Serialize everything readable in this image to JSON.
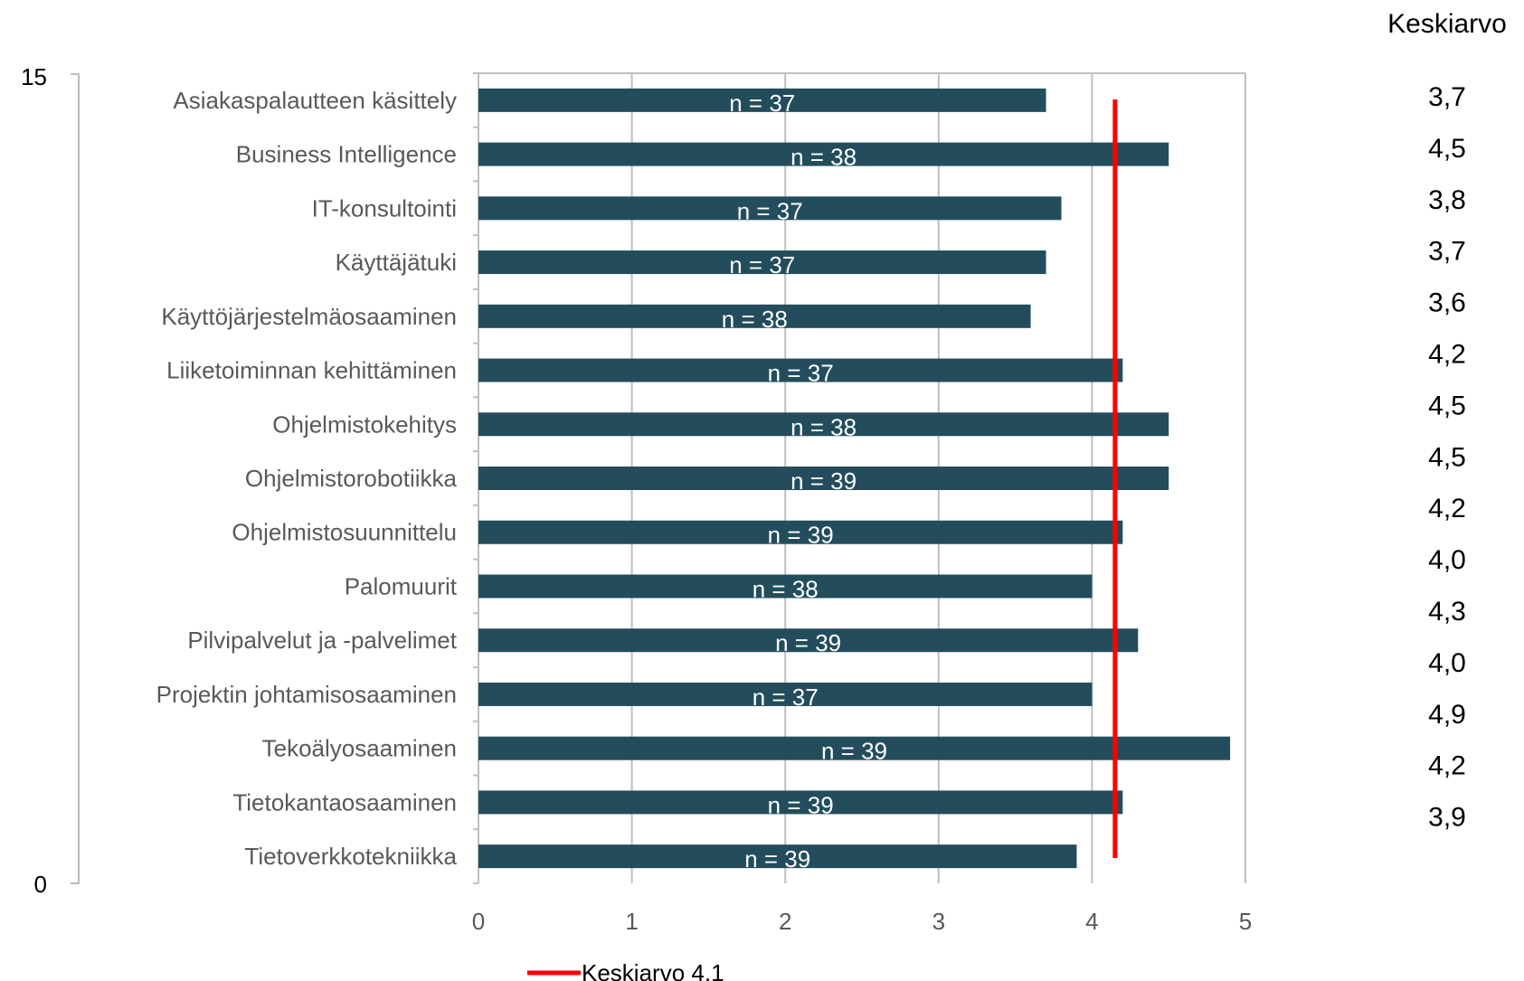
{
  "chart_data": {
    "type": "bar",
    "orientation": "horizontal",
    "categories": [
      "Asiakaspalautteen käsittely",
      "Business Intelligence",
      "IT-konsultointi",
      "Käyttäjätuki",
      "Käyttöjärjestelmäosaaminen",
      "Liiketoiminnan kehittäminen",
      "Ohjelmistokehitys",
      "Ohjelmistorobotiikka",
      "Ohjelmistosuunnittelu",
      "Palomuurit",
      "Pilvipalvelut ja -palvelimet",
      "Projektin johtamisosaaminen",
      "Tekoälyosaaminen",
      "Tietokantaosaaminen",
      "Tietoverkkotekniikka"
    ],
    "values": [
      3.7,
      4.5,
      3.8,
      3.7,
      3.6,
      4.2,
      4.5,
      4.5,
      4.2,
      4.0,
      4.3,
      4.0,
      4.9,
      4.2,
      3.9
    ],
    "n_labels": [
      "n = 37",
      "n = 38",
      "n = 37",
      "n = 37",
      "n = 38",
      "n = 37",
      "n = 38",
      "n = 39",
      "n = 39",
      "n = 38",
      "n = 39",
      "n = 37",
      "n = 39",
      "n = 39",
      "n = 39"
    ],
    "mean_column_header": "Keskiarvo",
    "mean_column_values": [
      "3,7",
      "4,5",
      "3,8",
      "3,7",
      "3,6",
      "4,2",
      "4,5",
      "4,5",
      "4,2",
      "4,0",
      "4,3",
      "4,0",
      "4,9",
      "4,2",
      "3,9"
    ],
    "xlim": [
      0,
      5
    ],
    "xticks": [
      "0",
      "1",
      "2",
      "3",
      "4",
      "5"
    ],
    "secondary_axis_ticks": [
      "15",
      "0"
    ],
    "mean_line": {
      "value": 4.15,
      "legend_label": "Keskiarvo 4,1"
    },
    "grid": true,
    "legend_position": "bottom",
    "colors": {
      "bar": "#234d5c",
      "mean_line": "#ff0000",
      "grid": "#bfbfbf",
      "n_text": "#ffffff",
      "category_text": "#595959"
    }
  }
}
